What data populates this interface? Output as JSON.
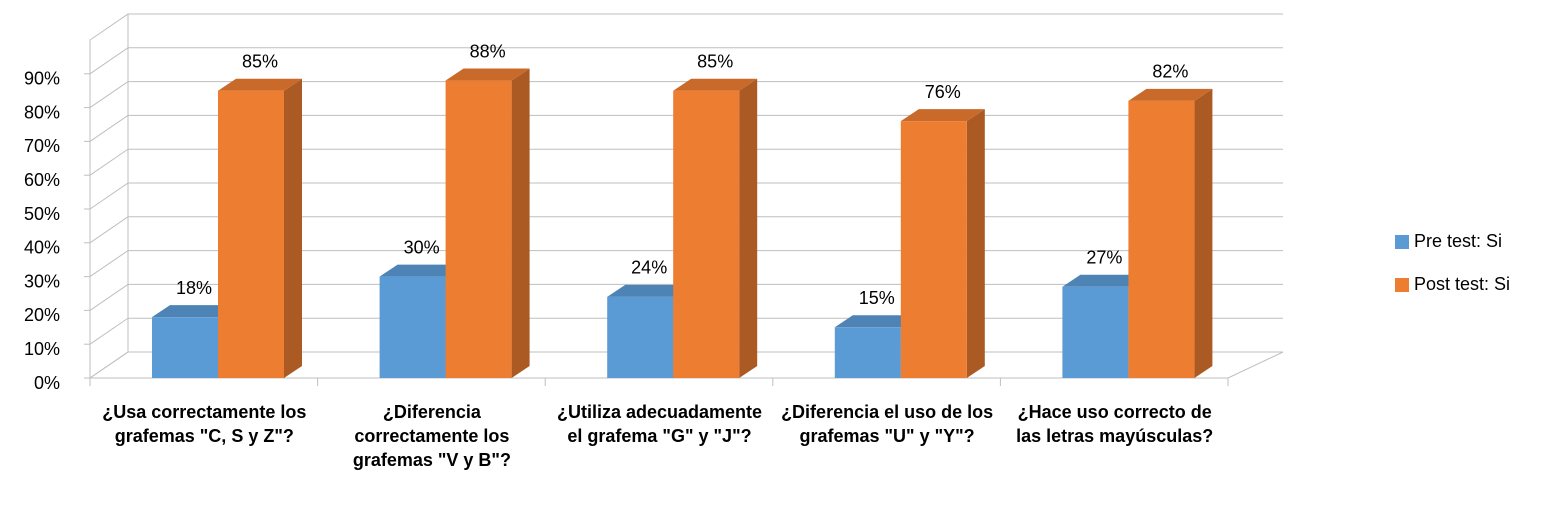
{
  "chart_data": {
    "type": "bar3d",
    "categories": [
      "¿Usa correctamente los grafemas \"C, S y Z\"?",
      "¿Diferencia correctamente los grafemas \"V y B\"?",
      "¿Utiliza adecuadamente el grafema \"G\" y \"J\"?",
      "¿Diferencia el uso de los grafemas \"U\" y \"Y\"?",
      "¿Hace uso correcto de las letras mayúsculas?"
    ],
    "series": [
      {
        "name": "Pre test: Si",
        "color": "#5b9bd5",
        "values": [
          18,
          30,
          24,
          15,
          27
        ],
        "value_labels": [
          "18%",
          "30%",
          "24%",
          "15%",
          "27%"
        ]
      },
      {
        "name": "Post test: Si",
        "color": "#ed7d31",
        "values": [
          85,
          88,
          85,
          76,
          82
        ],
        "value_labels": [
          "85%",
          "88%",
          "85%",
          "76%",
          "82%"
        ]
      }
    ],
    "ylim": [
      0,
      100
    ],
    "yticks": [
      {
        "value": 0,
        "label": "0%"
      },
      {
        "value": 10,
        "label": "10%"
      },
      {
        "value": 20,
        "label": "20%"
      },
      {
        "value": 30,
        "label": "30%"
      },
      {
        "value": 40,
        "label": "40%"
      },
      {
        "value": 50,
        "label": "50%"
      },
      {
        "value": 60,
        "label": "60%"
      },
      {
        "value": 70,
        "label": "70%"
      },
      {
        "value": 80,
        "label": "80%"
      },
      {
        "value": 90,
        "label": "90%"
      }
    ],
    "grid": true,
    "legend": "right"
  }
}
